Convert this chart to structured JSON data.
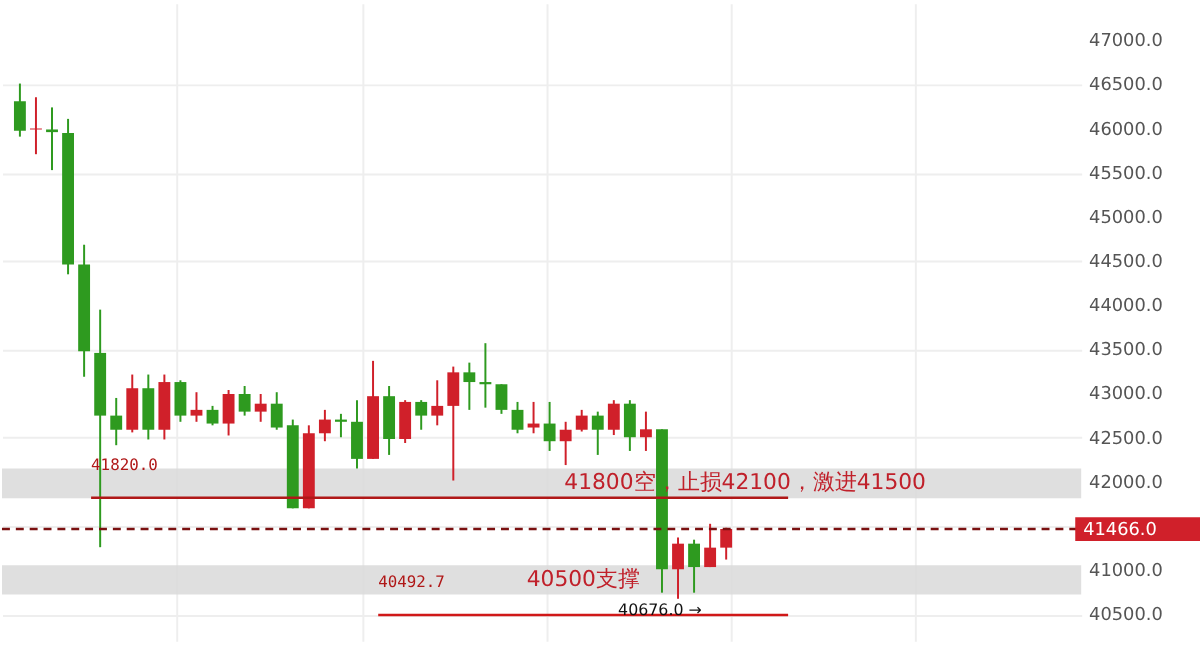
{
  "chart_data": {
    "type": "candlestick",
    "categories": [
      null,
      null,
      null,
      null,
      null,
      null,
      null,
      null,
      null,
      null,
      null,
      null,
      null,
      null,
      null,
      null,
      null,
      null,
      null,
      null,
      null,
      null,
      null,
      null,
      null,
      null,
      null,
      null,
      null,
      null,
      null,
      null,
      null,
      null,
      null,
      null,
      null,
      null,
      null,
      null,
      null,
      null,
      null,
      null,
      null,
      null,
      null,
      null,
      null,
      null,
      null,
      null,
      null,
      null,
      null,
      null,
      null,
      null,
      null,
      null,
      null,
      null,
      null,
      null,
      null,
      null
    ],
    "ohlc": [
      [
        46310,
        46510,
        45909,
        45976
      ],
      [
        45990,
        46355,
        45710,
        46000
      ],
      [
        45990,
        46240,
        45530,
        45960
      ],
      [
        45950,
        46110,
        44350,
        44460
      ],
      [
        44460,
        44685,
        43190,
        43480
      ],
      [
        43460,
        43950,
        41260,
        42750
      ],
      [
        42750,
        42950,
        42415,
        42590
      ],
      [
        42590,
        43215,
        42560,
        43060
      ],
      [
        43060,
        43215,
        42480,
        42590
      ],
      [
        42590,
        43215,
        42480,
        43130
      ],
      [
        43130,
        43150,
        42680,
        42750
      ],
      [
        42750,
        43015,
        42680,
        42815
      ],
      [
        42815,
        42860,
        42640,
        42660
      ],
      [
        42660,
        43040,
        42525,
        42995
      ],
      [
        42995,
        43085,
        42750,
        42795
      ],
      [
        42795,
        42995,
        42680,
        42885
      ],
      [
        42885,
        43015,
        42590,
        42615
      ],
      [
        42640,
        42705,
        41700,
        41700
      ],
      [
        41700,
        42640,
        41700,
        42550
      ],
      [
        42550,
        42815,
        42460,
        42705
      ],
      [
        42705,
        42770,
        42505,
        42680
      ],
      [
        42680,
        42925,
        42150,
        42260
      ],
      [
        42260,
        43370,
        42260,
        42970
      ],
      [
        42970,
        43085,
        42305,
        42485
      ],
      [
        42485,
        42925,
        42440,
        42905
      ],
      [
        42905,
        42925,
        42590,
        42750
      ],
      [
        42750,
        43150,
        42640,
        42860
      ],
      [
        42860,
        43305,
        42015,
        43240
      ],
      [
        43240,
        43350,
        42815,
        43130
      ],
      [
        43130,
        43570,
        42840,
        43105
      ],
      [
        43105,
        43105,
        42770,
        42815
      ],
      [
        42815,
        42905,
        42550,
        42590
      ],
      [
        42615,
        42905,
        42550,
        42660
      ],
      [
        42660,
        42905,
        42350,
        42460
      ],
      [
        42460,
        42680,
        42190,
        42590
      ],
      [
        42590,
        42815,
        42570,
        42750
      ],
      [
        42750,
        42795,
        42305,
        42590
      ],
      [
        42590,
        42925,
        42530,
        42885
      ],
      [
        42885,
        42925,
        42350,
        42505
      ],
      [
        42505,
        42795,
        42350,
        42595
      ],
      [
        42595,
        42595,
        40745,
        41010
      ],
      [
        41010,
        41370,
        40676,
        41300
      ],
      [
        41300,
        41345,
        40745,
        41035
      ],
      [
        41035,
        41525,
        41035,
        41255
      ],
      [
        41255,
        41480,
        41120,
        41466
      ],
      null,
      null,
      null,
      null,
      null,
      null,
      null,
      null,
      null,
      null,
      null,
      null,
      null,
      null,
      null,
      null,
      null,
      null,
      null,
      null,
      null
    ],
    "colors": [
      "#2e9a1f",
      "#d0202a",
      "#2e9a1f",
      "#2e9a1f",
      "#2e9a1f",
      "#2e9a1f",
      "#2e9a1f",
      "#d0202a",
      "#2e9a1f",
      "#d0202a",
      "#2e9a1f",
      "#d0202a",
      "#2e9a1f",
      "#d0202a",
      "#2e9a1f",
      "#d0202a",
      "#2e9a1f",
      "#2e9a1f",
      "#d0202a",
      "#d0202a",
      "#2e9a1f",
      "#2e9a1f",
      "#d0202a",
      "#2e9a1f",
      "#d0202a",
      "#2e9a1f",
      "#d0202a",
      "#d0202a",
      "#2e9a1f",
      "#2e9a1f",
      "#2e9a1f",
      "#2e9a1f",
      "#d0202a",
      "#2e9a1f",
      "#d0202a",
      "#d0202a",
      "#2e9a1f",
      "#d0202a",
      "#2e9a1f",
      "#d0202a",
      "#2e9a1f",
      "#d0202a",
      "#2e9a1f",
      "#d0202a",
      "#d0202a",
      null,
      null,
      null,
      null,
      null,
      null,
      null,
      null,
      null,
      null,
      null,
      null,
      null,
      null,
      null,
      null,
      null,
      null,
      null,
      null,
      null
    ],
    "ylim": [
      40200,
      47420
    ],
    "yticks": [
      {
        "value": 40500,
        "label": "40500.0"
      },
      {
        "value": 41000,
        "label": "41000.0"
      },
      {
        "value": 41500,
        "label": null
      },
      {
        "value": 42000,
        "label": "42000.0"
      },
      {
        "value": 42500,
        "label": "42500.0"
      },
      {
        "value": 43000,
        "label": "43000.0"
      },
      {
        "value": 43500,
        "label": "43500.0"
      },
      {
        "value": 44000,
        "label": "44000.0"
      },
      {
        "value": 44500,
        "label": "44500.0"
      },
      {
        "value": 45000,
        "label": "45000.0"
      },
      {
        "value": 45500,
        "label": "45500.0"
      },
      {
        "value": 46000,
        "label": "46000.0"
      },
      {
        "value": 46500,
        "label": "46500.0"
      },
      {
        "value": 47000,
        "label": "47000.0"
      }
    ],
    "grid": true,
    "ref_lines": [
      {
        "axis": "y",
        "value": 41820,
        "label": "41820.0",
        "color": "#b01818"
      },
      {
        "axis": "y",
        "value": 40492.7,
        "label": "40492.7",
        "color": "#d01818"
      },
      {
        "axis": "y",
        "value": 41466,
        "label": "41466.0",
        "color": "#7a1010",
        "line_style": "dashed"
      }
    ],
    "bands": [
      {
        "axis": "y",
        "from": 41815,
        "to": 42150,
        "label": "41800空，止损42100，激进41500",
        "color": "#d9d9d9"
      },
      {
        "axis": "y",
        "from": 40723,
        "to": 41056,
        "label": "40500支撑",
        "color": "#d9d9d9"
      }
    ],
    "annotations": [
      {
        "text": "40676.0 →",
        "y": 40676
      }
    ]
  }
}
